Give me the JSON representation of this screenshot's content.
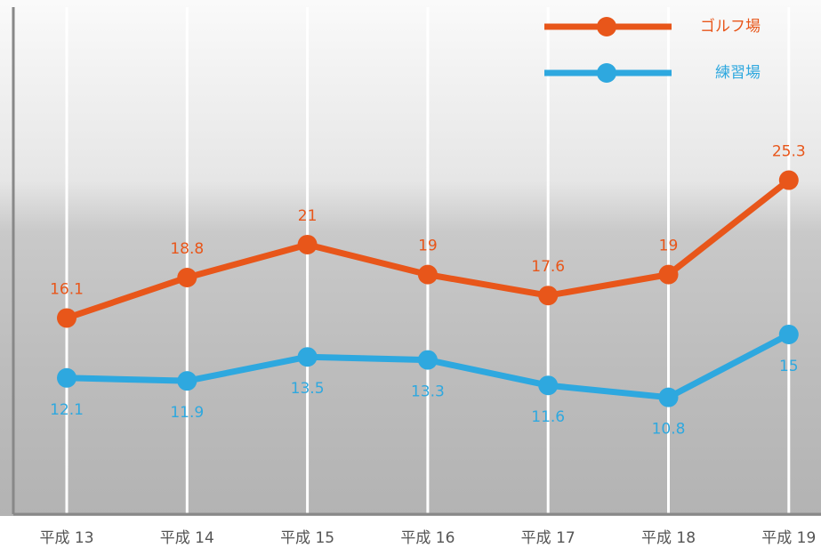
{
  "chart_data": {
    "type": "line",
    "categories": [
      "平成 13",
      "平成 14",
      "平成 15",
      "平成 16",
      "平成 17",
      "平成 18",
      "平成 19"
    ],
    "series": [
      {
        "name": "ゴルフ場",
        "color": "#e8561a",
        "values": [
          16.1,
          18.8,
          21,
          19,
          17.6,
          19,
          25.3
        ]
      },
      {
        "name": "練習場",
        "color": "#2ea8df",
        "values": [
          12.1,
          11.9,
          13.5,
          13.3,
          11.6,
          10.8,
          15
        ]
      }
    ],
    "ylim": [
      3,
      36.5
    ],
    "legend": "top-right",
    "grid": true
  }
}
